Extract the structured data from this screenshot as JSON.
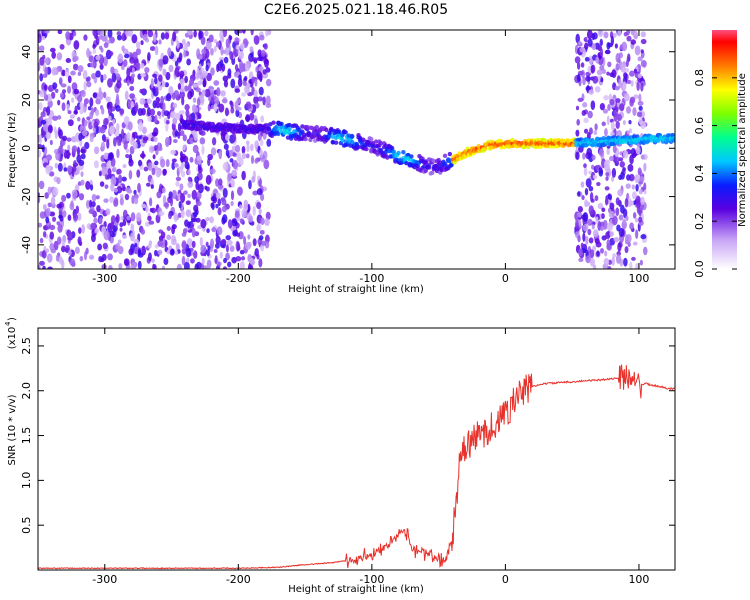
{
  "title": "C2E6.2025.021.18.46.R05",
  "chart_data": [
    {
      "type": "heatmap",
      "xlabel": "Height of straight line (km)",
      "ylabel": "Frequency (Hz)",
      "xlim": [
        -350,
        127
      ],
      "ylim": [
        -50,
        49
      ],
      "x_ticks": [
        -300,
        -200,
        -100,
        0,
        100
      ],
      "y_ticks": [
        -40,
        -20,
        0,
        20,
        40
      ],
      "colorbar": {
        "label": "Normalized spectral amplitude",
        "range": [
          0.0,
          1.0
        ],
        "ticks": [
          "0.0",
          "0.2",
          "0.4",
          "0.6",
          "0.8"
        ]
      },
      "ridge": {
        "x": [
          -242,
          -225,
          -190,
          -175,
          -160,
          -140,
          -120,
          -100,
          -80,
          -70,
          -60,
          -52,
          -45,
          -40,
          -30,
          -20,
          -10,
          0,
          20,
          50,
          80,
          100,
          110,
          127
        ],
        "y": [
          10,
          9,
          8,
          8,
          7,
          6,
          4,
          1,
          -3,
          -5,
          -7,
          -8,
          -6,
          -5,
          -2,
          0,
          1.5,
          2,
          2,
          2,
          3,
          3.5,
          4,
          4
        ]
      },
      "noise_regions_km": [
        [
          -350,
          -177
        ],
        [
          53,
          105
        ]
      ]
    },
    {
      "type": "line",
      "xlabel": "Height of straight line (km)",
      "ylabel": "SNR (10 * v/v)",
      "y_multiplier": "(x10",
      "y_multiplier_exp": "4",
      "xlim": [
        -350,
        127
      ],
      "ylim": [
        0,
        2.7
      ],
      "x_ticks": [
        -300,
        -200,
        -100,
        0,
        100
      ],
      "y_ticks": [
        "0.5",
        "1.0",
        "1.5",
        "2.0",
        "2.5"
      ],
      "color": "#e8312a",
      "series": [
        {
          "x": [
            -350,
            -300,
            -250,
            -200,
            -170,
            -150,
            -130,
            -110,
            -100,
            -90,
            -80,
            -75,
            -70,
            -60,
            -50,
            -45,
            -40,
            -37,
            -35,
            -32,
            -30,
            -27,
            -25,
            -20,
            -15,
            -10,
            -5,
            0,
            5,
            10,
            20,
            30,
            50,
            70,
            90,
            95,
            98,
            100,
            105,
            110,
            115,
            120,
            127
          ],
          "y": [
            0.02,
            0.02,
            0.02,
            0.02,
            0.03,
            0.06,
            0.08,
            0.13,
            0.18,
            0.28,
            0.38,
            0.45,
            0.25,
            0.18,
            0.12,
            0.1,
            0.35,
            0.7,
            1.1,
            1.3,
            1.35,
            1.4,
            1.45,
            1.5,
            1.55,
            1.6,
            1.65,
            1.75,
            1.85,
            1.95,
            2.05,
            2.08,
            2.1,
            2.12,
            2.15,
            2.2,
            2.1,
            2.05,
            2.08,
            2.06,
            2.05,
            2.03,
            2.02
          ]
        }
      ]
    }
  ]
}
